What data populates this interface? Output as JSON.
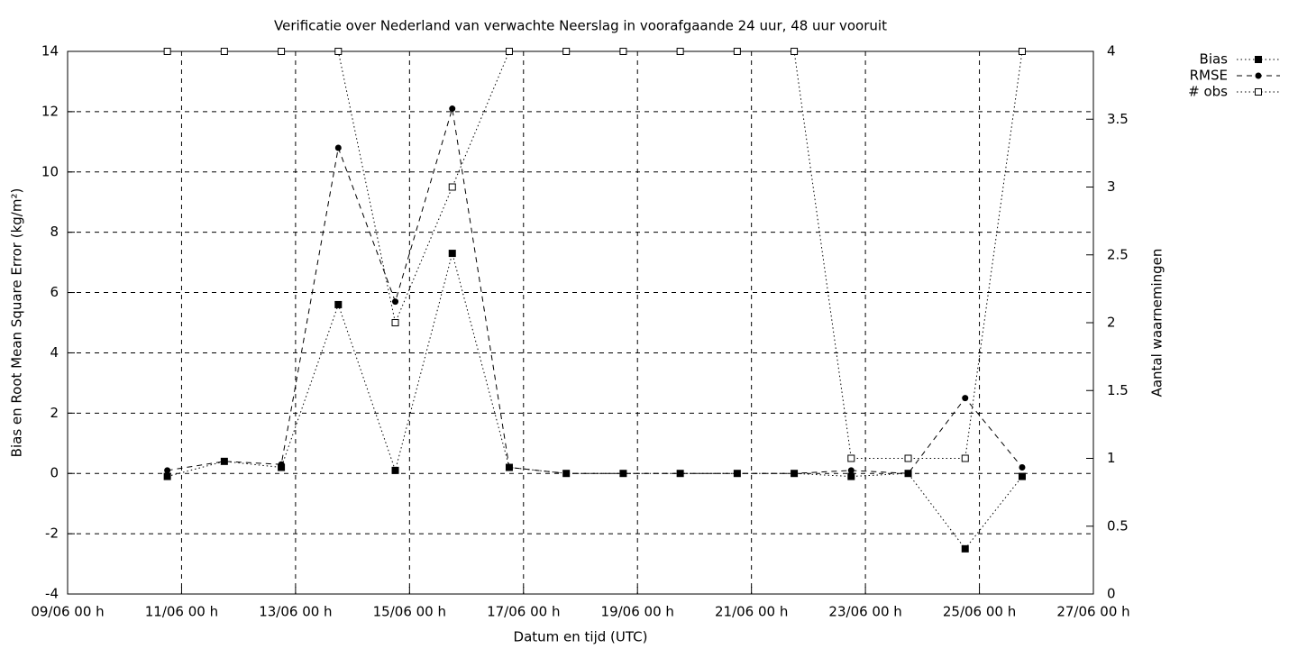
{
  "chart_data": {
    "type": "line",
    "title": "Verificatie over Nederland van verwachte Neerslag in voorafgaande 24 uur, 48 uur vooruit",
    "x_label": "Datum en tijd (UTC)",
    "y_label": "Bias en Root Mean Square Error (kg/m²)",
    "y2_label": "Aantal waarnemingen",
    "x": [
      "10/06 18 h",
      "11/06 18 h",
      "12/06 18 h",
      "13/06 18 h",
      "14/06 18 h",
      "15/06 18 h",
      "16/06 18 h",
      "17/06 18 h",
      "18/06 18 h",
      "19/06 18 h",
      "20/06 18 h",
      "21/06 18 h",
      "22/06 18 h",
      "23/06 18 h",
      "24/06 18 h",
      "25/06 18 h"
    ],
    "xlim": [
      "09/06 00 h",
      "27/06 00 h"
    ],
    "xticks": [
      "09/06 00 h",
      "11/06 00 h",
      "13/06 00 h",
      "15/06 00 h",
      "17/06 00 h",
      "19/06 00 h",
      "21/06 00 h",
      "23/06 00 h",
      "25/06 00 h",
      "27/06 00 h"
    ],
    "ylim": [
      -4,
      14
    ],
    "yticks": [
      -4,
      -2,
      0,
      2,
      4,
      6,
      8,
      10,
      12,
      14
    ],
    "y2lim": [
      0,
      4
    ],
    "y2ticks": [
      0,
      0.5,
      1,
      1.5,
      2,
      2.5,
      3,
      3.5,
      4
    ],
    "grid": true,
    "legend": "top-right-outside",
    "series": [
      {
        "name": "Bias",
        "color": "#000000",
        "dash": "dotted",
        "marker": "filled-square",
        "values": [
          -0.1,
          0.4,
          0.2,
          5.6,
          0.1,
          7.3,
          0.2,
          0,
          0,
          0,
          0,
          0,
          -0.1,
          0,
          -2.5,
          -0.1
        ]
      },
      {
        "name": "RMSE",
        "color": "#000000",
        "dash": "dashed",
        "marker": "filled-circle",
        "values": [
          0.1,
          0.4,
          0.3,
          10.8,
          5.7,
          12.1,
          0.2,
          0,
          0,
          0,
          0,
          0,
          0.1,
          0,
          2.5,
          0.2
        ]
      },
      {
        "name": "# obs",
        "color": "#000000",
        "dash": "dotted",
        "marker": "open-square",
        "axis": "y2",
        "values": [
          4,
          4,
          4,
          4,
          2,
          3,
          4,
          4,
          4,
          4,
          4,
          4,
          1,
          1,
          1,
          4
        ]
      }
    ]
  }
}
